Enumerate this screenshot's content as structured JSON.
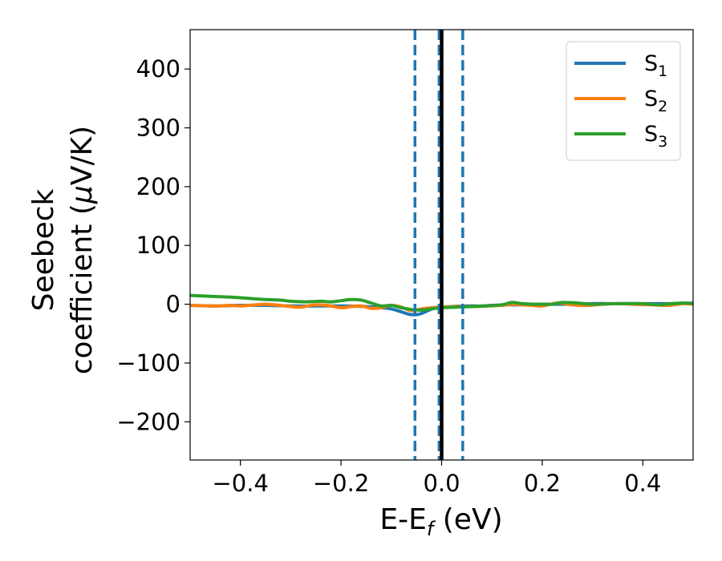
{
  "chart_data": {
    "type": "line",
    "xlabel": {
      "main": "E-E",
      "sub": "f",
      "unit": " (eV)"
    },
    "ylabel": {
      "line1": "Seebeck",
      "line2_main": "coefficient  (",
      "line2_mu": "μ",
      "line2_unit": "V/K)"
    },
    "xlim": [
      -0.5,
      0.5
    ],
    "ylim": [
      -265,
      467
    ],
    "xticks": [
      -0.4,
      -0.2,
      0.0,
      0.2,
      0.4
    ],
    "xtick_labels": [
      "−0.4",
      "−0.2",
      "0.0",
      "0.2",
      "0.4"
    ],
    "yticks": [
      -200,
      -100,
      0,
      100,
      200,
      300,
      400
    ],
    "ytick_labels": [
      "−200",
      "−100",
      "0",
      "100",
      "200",
      "300",
      "400"
    ],
    "grid": false,
    "legend_position": "top-right",
    "vlines": [
      {
        "x": -0.053,
        "style": "dashed",
        "color": "#1f77b4"
      },
      {
        "x": -0.005,
        "style": "dashed",
        "color": "#1f77b4"
      },
      {
        "x": 0.042,
        "style": "dashed",
        "color": "#1f77b4"
      },
      {
        "x": 0.0,
        "style": "solid",
        "color": "#000000"
      }
    ],
    "series": [
      {
        "name": "S",
        "sub": "1",
        "color": "#1f77b4",
        "x": [
          -0.5,
          -0.45,
          -0.4,
          -0.35,
          -0.3,
          -0.25,
          -0.2,
          -0.15,
          -0.12,
          -0.1,
          -0.08,
          -0.065,
          -0.055,
          -0.045,
          -0.035,
          -0.025,
          -0.015,
          -0.005,
          0.0,
          0.02,
          0.05,
          0.08,
          0.1,
          0.13,
          0.16,
          0.19,
          0.21,
          0.24,
          0.27,
          0.3,
          0.35,
          0.4,
          0.45,
          0.5
        ],
        "y": [
          -2,
          -3,
          -2,
          -2,
          -3,
          -3,
          -3,
          -4,
          -6,
          -8,
          -13,
          -17,
          -18,
          -17,
          -14,
          -10,
          -7,
          -5,
          -5,
          -4,
          -3,
          -3,
          -2,
          -1,
          -1,
          0,
          0,
          0,
          0,
          1,
          1,
          1,
          1,
          2
        ]
      },
      {
        "name": "S",
        "sub": "2",
        "color": "#ff7f0e",
        "x": [
          -0.5,
          -0.45,
          -0.42,
          -0.4,
          -0.37,
          -0.35,
          -0.32,
          -0.3,
          -0.28,
          -0.26,
          -0.24,
          -0.22,
          -0.2,
          -0.18,
          -0.16,
          -0.14,
          -0.12,
          -0.1,
          -0.08,
          -0.06,
          -0.04,
          -0.02,
          0.0,
          0.03,
          0.06,
          0.09,
          0.12,
          0.14,
          0.16,
          0.18,
          0.2,
          0.23,
          0.26,
          0.29,
          0.32,
          0.35,
          0.38,
          0.42,
          0.45,
          0.48,
          0.5
        ],
        "y": [
          -2,
          -3,
          -2,
          -3,
          -1,
          0,
          -2,
          -4,
          -5,
          -2,
          -1,
          -3,
          -6,
          -4,
          -3,
          -7,
          -6,
          -2,
          -5,
          -11,
          -8,
          -6,
          -5,
          -4,
          -4,
          -3,
          -2,
          0,
          -1,
          -2,
          -3,
          2,
          -1,
          -2,
          0,
          1,
          0,
          -1,
          -2,
          1,
          0
        ]
      },
      {
        "name": "S",
        "sub": "3",
        "color": "#2ca02c",
        "x": [
          -0.5,
          -0.45,
          -0.42,
          -0.4,
          -0.37,
          -0.35,
          -0.32,
          -0.3,
          -0.27,
          -0.24,
          -0.22,
          -0.2,
          -0.18,
          -0.16,
          -0.14,
          -0.12,
          -0.1,
          -0.08,
          -0.06,
          -0.04,
          -0.02,
          0.0,
          0.03,
          0.06,
          0.09,
          0.12,
          0.14,
          0.16,
          0.19,
          0.22,
          0.24,
          0.27,
          0.3,
          0.35,
          0.4,
          0.43,
          0.46,
          0.48,
          0.5
        ],
        "y": [
          15,
          13,
          12,
          11,
          9,
          8,
          7,
          5,
          4,
          5,
          4,
          6,
          8,
          7,
          2,
          -3,
          -2,
          -6,
          -9,
          -10,
          -8,
          -6,
          -5,
          -4,
          -3,
          -1,
          3,
          1,
          0,
          0,
          3,
          2,
          0,
          1,
          1,
          -1,
          1,
          2,
          1
        ]
      }
    ]
  }
}
